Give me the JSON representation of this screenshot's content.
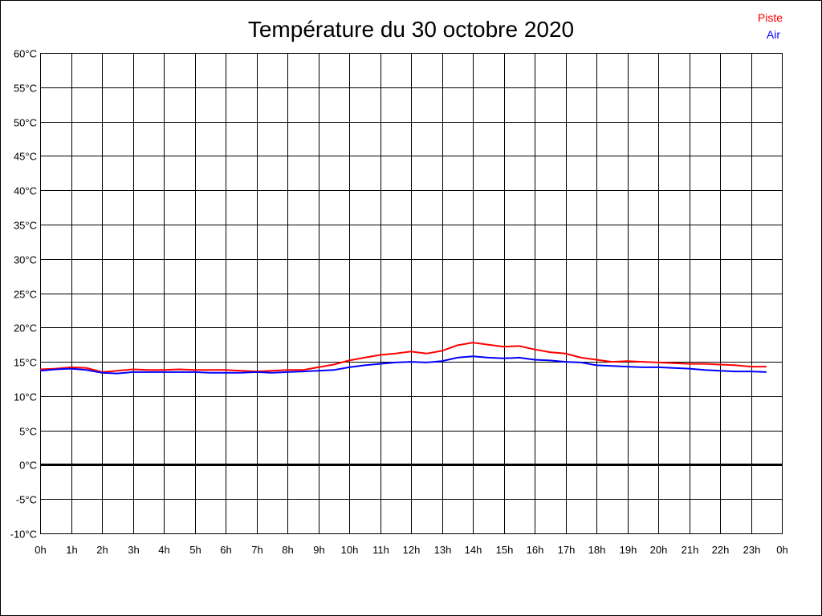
{
  "chart_data": {
    "type": "line",
    "title": "Température du 30 octobre 2020",
    "xlabel": "",
    "ylabel": "",
    "xlim": [
      0,
      24
    ],
    "ylim": [
      -10,
      60
    ],
    "grid": true,
    "legend_position": "top-right",
    "x_tick_labels": [
      "0h",
      "1h",
      "2h",
      "3h",
      "4h",
      "5h",
      "6h",
      "7h",
      "8h",
      "9h",
      "10h",
      "11h",
      "12h",
      "13h",
      "14h",
      "15h",
      "16h",
      "17h",
      "18h",
      "19h",
      "20h",
      "21h",
      "22h",
      "23h",
      "0h"
    ],
    "y_ticks": [
      60,
      55,
      50,
      45,
      40,
      35,
      30,
      25,
      20,
      15,
      10,
      5,
      0,
      -5,
      -10
    ],
    "y_tick_labels": [
      "60°C",
      "55°C",
      "50°C",
      "45°C",
      "40°C",
      "35°C",
      "30°C",
      "25°C",
      "20°C",
      "15°C",
      "10°C",
      "5°C",
      "0°C",
      "-5°C",
      "-10°C"
    ],
    "x": [
      0,
      0.5,
      1,
      1.5,
      2,
      2.5,
      3,
      3.5,
      4,
      4.5,
      5,
      5.5,
      6,
      6.5,
      7,
      7.5,
      8,
      8.5,
      9,
      9.5,
      10,
      10.5,
      11,
      11.5,
      12,
      12.5,
      13,
      13.5,
      14,
      14.5,
      15,
      15.5,
      16,
      16.5,
      17,
      17.5,
      18,
      18.5,
      19,
      19.5,
      20,
      20.5,
      21,
      21.5,
      22,
      22.5,
      23,
      23.5
    ],
    "series": [
      {
        "name": "Piste",
        "color": "#ff0000",
        "values": [
          13.9,
          14.0,
          14.2,
          14.1,
          13.5,
          13.7,
          13.9,
          13.8,
          13.8,
          13.9,
          13.8,
          13.8,
          13.8,
          13.7,
          13.6,
          13.7,
          13.8,
          13.8,
          14.2,
          14.6,
          15.2,
          15.6,
          16.0,
          16.2,
          16.5,
          16.2,
          16.6,
          17.4,
          17.8,
          17.5,
          17.2,
          17.3,
          16.8,
          16.4,
          16.2,
          15.6,
          15.3,
          15.0,
          15.1,
          15.0,
          14.9,
          14.8,
          14.7,
          14.7,
          14.6,
          14.5,
          14.3,
          14.3
        ]
      },
      {
        "name": "Air",
        "color": "#0000ff",
        "values": [
          13.7,
          13.9,
          14.0,
          13.8,
          13.4,
          13.3,
          13.5,
          13.5,
          13.5,
          13.5,
          13.5,
          13.4,
          13.4,
          13.4,
          13.5,
          13.4,
          13.5,
          13.6,
          13.7,
          13.8,
          14.2,
          14.5,
          14.7,
          14.9,
          15.0,
          14.9,
          15.1,
          15.6,
          15.8,
          15.6,
          15.5,
          15.6,
          15.3,
          15.2,
          15.0,
          14.9,
          14.5,
          14.4,
          14.3,
          14.2,
          14.2,
          14.1,
          14.0,
          13.8,
          13.7,
          13.6,
          13.6,
          13.5
        ]
      }
    ]
  }
}
